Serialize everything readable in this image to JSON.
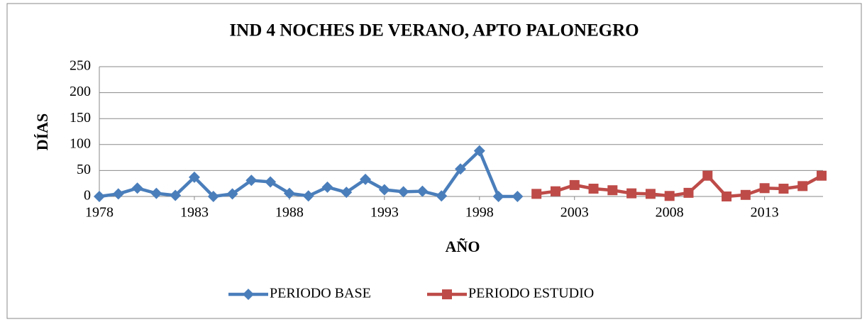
{
  "chart_data": {
    "type": "line",
    "title": "IND 4 NOCHES DE VERANO, APTO PALONEGRO",
    "x_label": "AÑO",
    "y_label": "DÍAS",
    "x": [
      1978,
      1979,
      1980,
      1981,
      1982,
      1983,
      1984,
      1985,
      1986,
      1987,
      1988,
      1989,
      1990,
      1991,
      1992,
      1993,
      1994,
      1995,
      1996,
      1997,
      1998,
      1999,
      2000,
      2001,
      2002,
      2003,
      2004,
      2005,
      2006,
      2007,
      2008,
      2009,
      2010,
      2011,
      2012,
      2013,
      2014,
      2015,
      2016
    ],
    "series": [
      {
        "name": "PERIODO BASE",
        "color": "#4a7ebb",
        "marker": "diamond",
        "values": [
          0,
          5,
          16,
          6,
          2,
          37,
          0,
          5,
          31,
          28,
          6,
          1,
          18,
          8,
          33,
          13,
          9,
          10,
          1,
          53,
          88,
          0,
          0,
          null,
          null,
          null,
          null,
          null,
          null,
          null,
          null,
          null,
          null,
          null,
          null,
          null,
          null,
          null,
          null
        ]
      },
      {
        "name": "PERIODO ESTUDIO",
        "color": "#be4b48",
        "marker": "square",
        "values": [
          null,
          null,
          null,
          null,
          null,
          null,
          null,
          null,
          null,
          null,
          null,
          null,
          null,
          null,
          null,
          null,
          null,
          null,
          null,
          null,
          null,
          null,
          null,
          5,
          10,
          22,
          15,
          12,
          6,
          5,
          1,
          7,
          40,
          0,
          3,
          16,
          15,
          20,
          40
        ]
      }
    ],
    "xlim": [
      1978,
      2016
    ],
    "xticks": [
      1978,
      1983,
      1988,
      1993,
      1998,
      2003,
      2008,
      2013
    ],
    "ylim": [
      0,
      250
    ],
    "yticks": [
      0,
      50,
      100,
      150,
      200,
      250
    ],
    "grid": true,
    "legend": "bottom"
  }
}
